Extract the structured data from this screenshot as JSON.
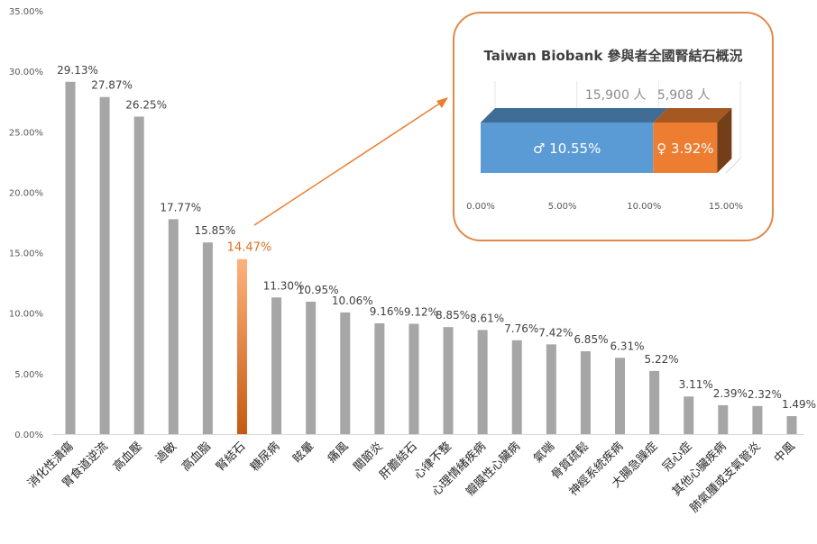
{
  "chart_data": [
    {
      "type": "bar",
      "categories": [
        "消化性潰瘍",
        "胃食道逆流",
        "高血壓",
        "過敏",
        "高血脂",
        "腎結石",
        "糖尿病",
        "眩暈",
        "痛風",
        "關節炎",
        "肝膽結石",
        "心律不整",
        "心理情緒疾病",
        "瓣膜性心臟病",
        "氣喘",
        "骨質疏鬆",
        "神經系統疾病",
        "大腸急躁症",
        "冠心症",
        "其他心臟疾病",
        "肺氣腫或支氣管炎",
        "中風"
      ],
      "values": [
        29.13,
        27.87,
        26.25,
        17.77,
        15.85,
        14.47,
        11.3,
        10.95,
        10.06,
        9.16,
        9.12,
        8.85,
        8.61,
        7.76,
        7.42,
        6.85,
        6.31,
        5.22,
        3.11,
        2.39,
        2.32,
        1.49
      ],
      "value_labels": [
        "29.13%",
        "27.87%",
        "26.25%",
        "17.77%",
        "15.85%",
        "14.47%",
        "11.30%",
        "10.95%",
        "10.06%",
        "9.16%",
        "9.12%",
        "8.85%",
        "8.61%",
        "7.76%",
        "7.42%",
        "6.85%",
        "6.31%",
        "5.22%",
        "3.11%",
        "2.39%",
        "2.32%",
        "1.49%"
      ],
      "highlight": "腎結石",
      "yticks": [
        "0.00%",
        "5.00%",
        "10.00%",
        "15.00%",
        "20.00%",
        "25.00%",
        "30.00%",
        "35.00%"
      ],
      "ylim": [
        0,
        35
      ],
      "grid": false,
      "colors": {
        "bar": "#a6a6a6",
        "highlight_top": "#fdb27e",
        "highlight_bottom": "#c55a11",
        "highlight_label": "#d9701f"
      }
    },
    {
      "type": "bar",
      "orientation": "horizontal-stacked",
      "title": "Taiwan Biobank 參與者全國腎結石概況",
      "series": [
        {
          "name": "♂",
          "value": 10.55,
          "label": "♂ 10.55%",
          "count": "15,900 人",
          "color": "#5b9bd5"
        },
        {
          "name": "♀",
          "value": 3.92,
          "label": "♀ 3.92%",
          "count": "5,908 人",
          "color": "#ed7d31"
        }
      ],
      "xticks": [
        "0.00%",
        "5.00%",
        "10.00%",
        "15.00%"
      ],
      "xlim": [
        0,
        15
      ],
      "border_color": "#e08a4a"
    }
  ]
}
